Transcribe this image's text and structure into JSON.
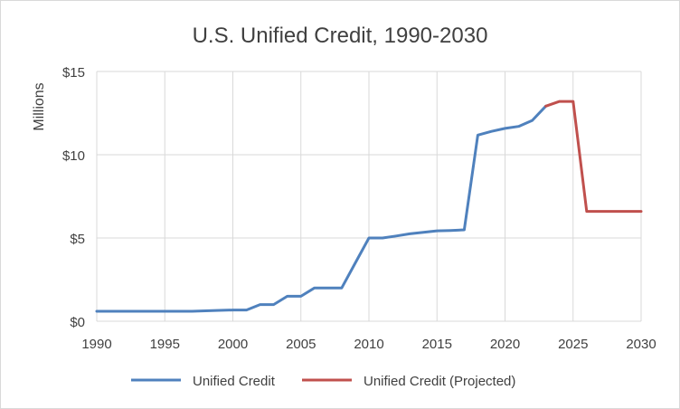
{
  "chart_data": {
    "type": "line",
    "title": "U.S. Unified Credit, 1990-2030",
    "ylabel": "Millions",
    "xlabel": "",
    "xlim": [
      1990,
      2030
    ],
    "ylim": [
      0,
      15
    ],
    "x_ticks": [
      1990,
      1995,
      2000,
      2005,
      2010,
      2015,
      2020,
      2025,
      2030
    ],
    "x_tick_labels": [
      "1990",
      "1995",
      "2000",
      "2005",
      "2010",
      "2015",
      "2020",
      "2025",
      "2030"
    ],
    "y_ticks": [
      0,
      5,
      10,
      15
    ],
    "y_tick_labels": [
      "$0",
      "$5",
      "$10",
      "$15"
    ],
    "grid": true,
    "legend_position": "bottom",
    "series": [
      {
        "name": "Unified Credit",
        "color": "#4f81bd",
        "x": [
          1990,
          1991,
          1992,
          1993,
          1994,
          1995,
          1996,
          1997,
          1998,
          1999,
          2000,
          2001,
          2002,
          2003,
          2004,
          2005,
          2006,
          2007,
          2008,
          2009,
          2010,
          2011,
          2012,
          2013,
          2014,
          2015,
          2016,
          2017,
          2018,
          2019,
          2020,
          2021,
          2022,
          2023
        ],
        "y": [
          0.6,
          0.6,
          0.6,
          0.6,
          0.6,
          0.6,
          0.6,
          0.6,
          0.625,
          0.65,
          0.675,
          0.675,
          1.0,
          1.0,
          1.5,
          1.5,
          2.0,
          2.0,
          2.0,
          3.5,
          5.0,
          5.0,
          5.12,
          5.25,
          5.34,
          5.43,
          5.45,
          5.49,
          11.18,
          11.4,
          11.58,
          11.7,
          12.06,
          12.92
        ]
      },
      {
        "name": "Unified Credit (Projected)",
        "color": "#c0504d",
        "x": [
          2023,
          2024,
          2025,
          2026,
          2027,
          2028,
          2029,
          2030
        ],
        "y": [
          12.92,
          13.2,
          13.2,
          6.6,
          6.6,
          6.6,
          6.6,
          6.6
        ]
      }
    ]
  }
}
